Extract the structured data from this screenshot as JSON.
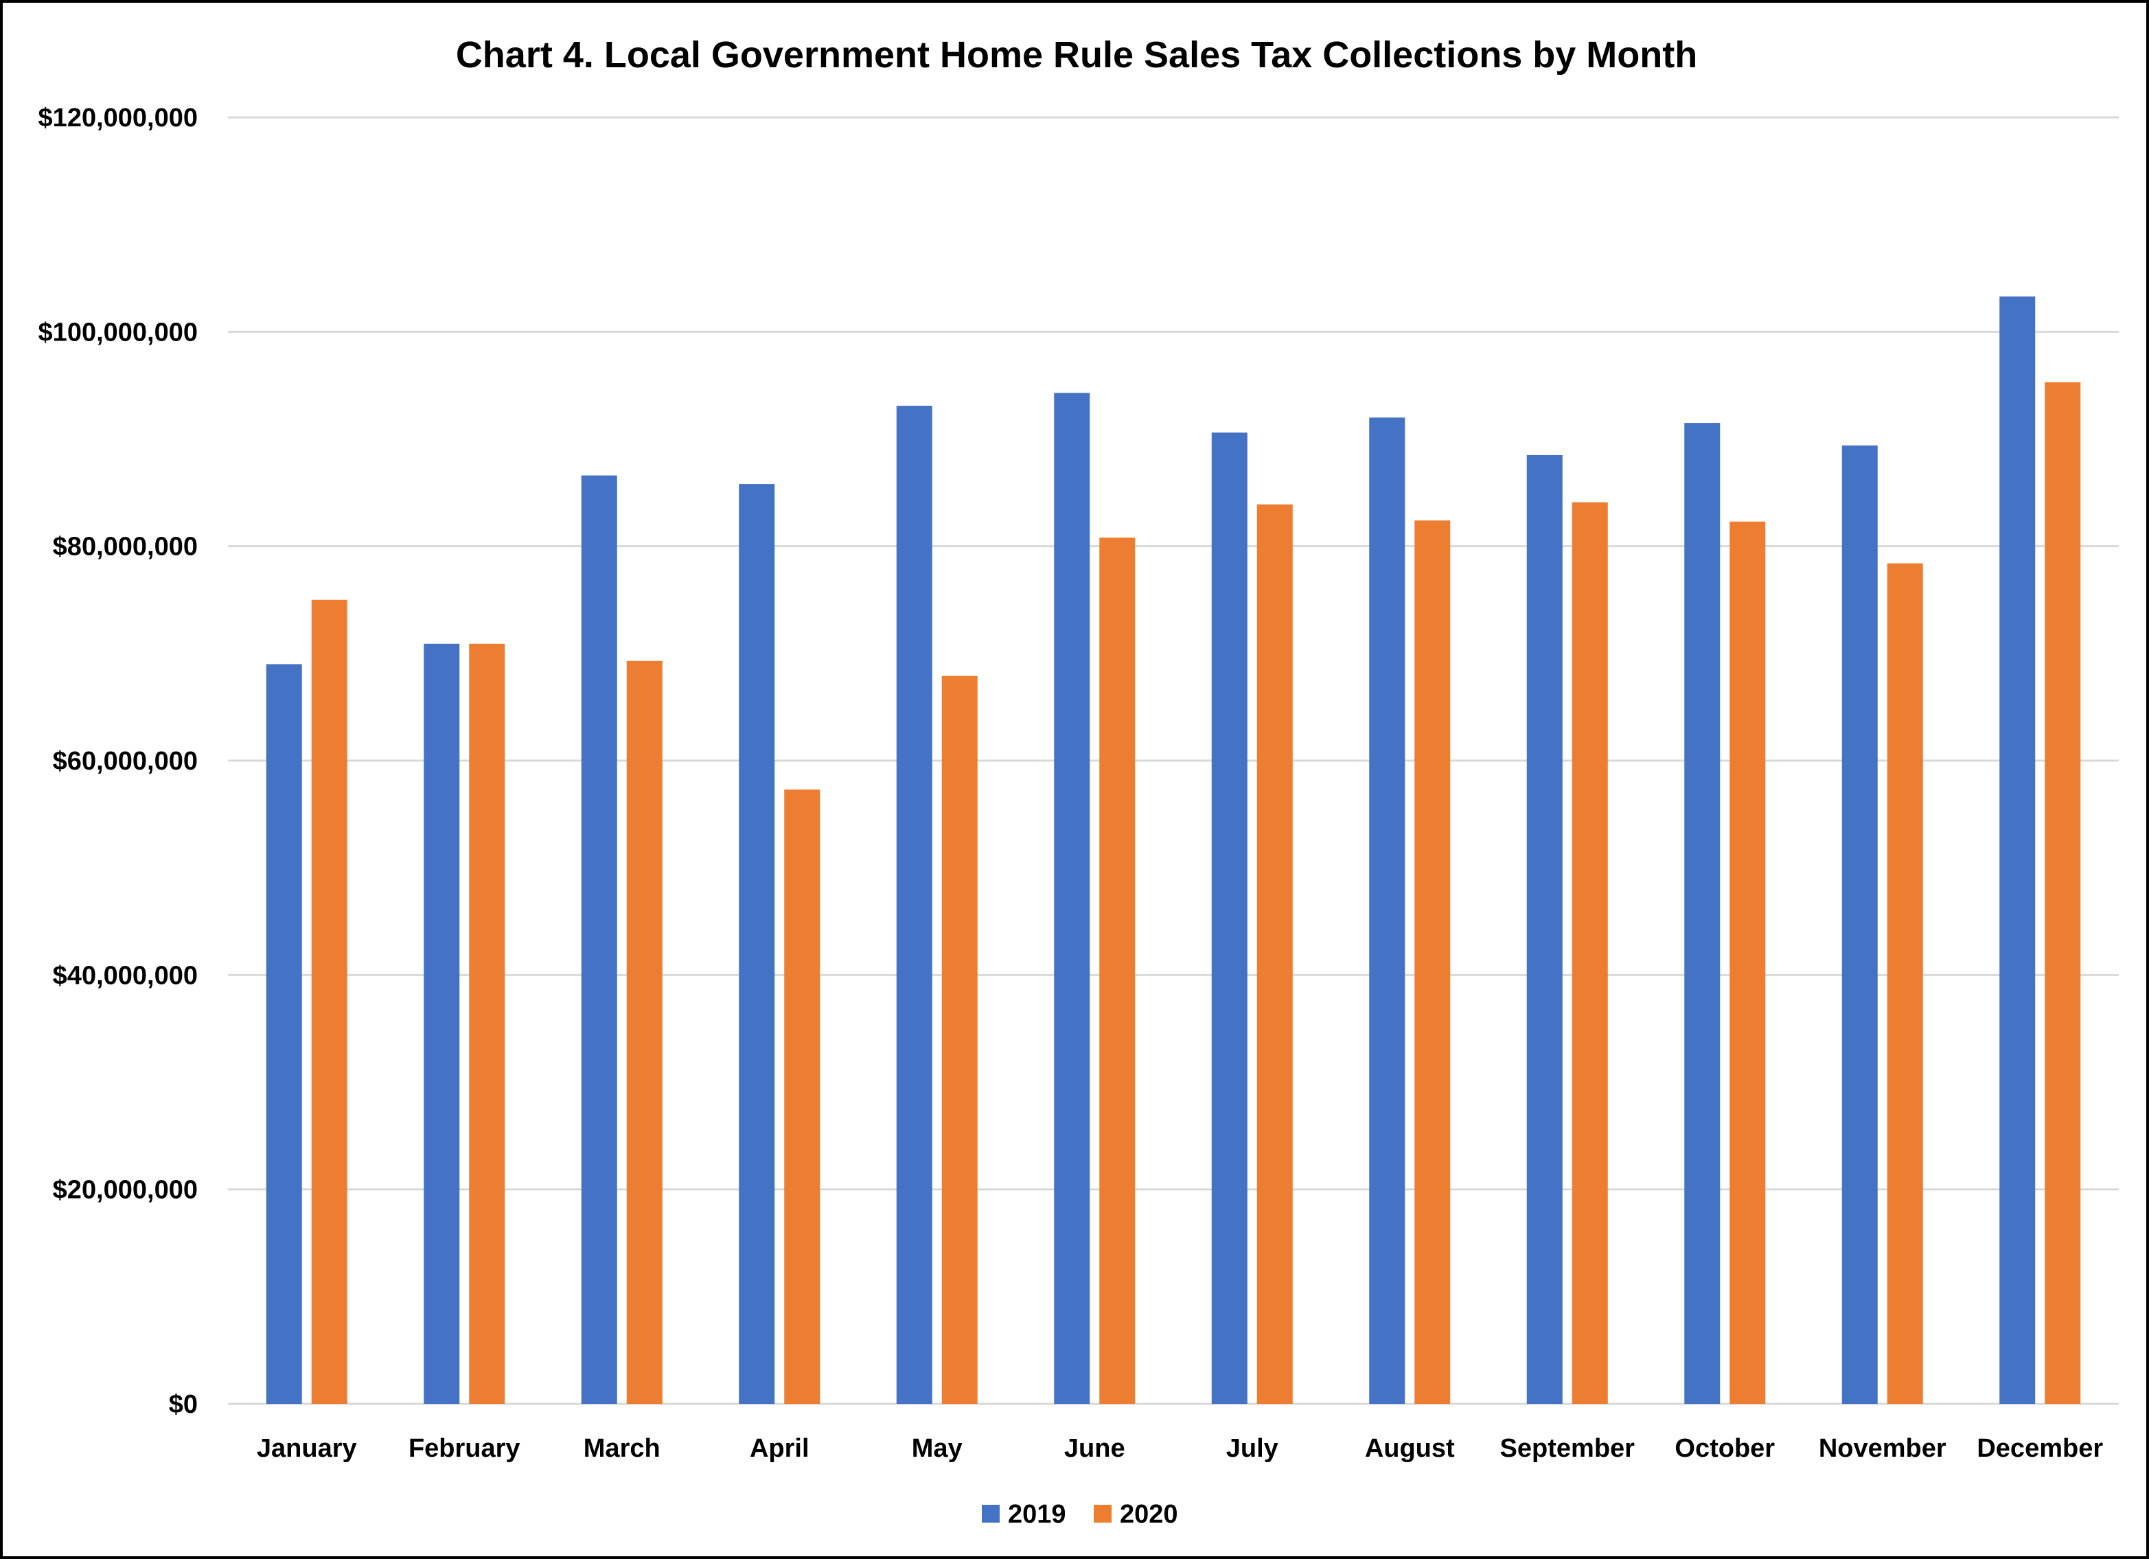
{
  "chart_data": {
    "type": "bar",
    "title": "Chart 4. Local Government Home Rule Sales Tax Collections by Month",
    "xlabel": "",
    "ylabel": "",
    "categories": [
      "January",
      "February",
      "March",
      "April",
      "May",
      "June",
      "July",
      "August",
      "September",
      "October",
      "November",
      "December"
    ],
    "series": [
      {
        "name": "2019",
        "color": "#4472C4",
        "values": [
          69000000,
          70900000,
          86600000,
          85800000,
          93100000,
          94300000,
          90600000,
          92000000,
          88500000,
          91500000,
          89400000,
          103300000
        ]
      },
      {
        "name": "2020",
        "color": "#ED7D31",
        "values": [
          75000000,
          70900000,
          69300000,
          57300000,
          67900000,
          80800000,
          83900000,
          82400000,
          84100000,
          82300000,
          78400000,
          95300000
        ]
      }
    ],
    "ylim": [
      0,
      120000000
    ],
    "y_ticks": [
      0,
      20000000,
      40000000,
      60000000,
      80000000,
      100000000,
      120000000
    ],
    "y_tick_labels": [
      "$0",
      "$20,000,000",
      "$40,000,000",
      "$60,000,000",
      "$80,000,000",
      "$100,000,000",
      "$120,000,000"
    ],
    "grid": true,
    "legend_position": "bottom-center"
  }
}
